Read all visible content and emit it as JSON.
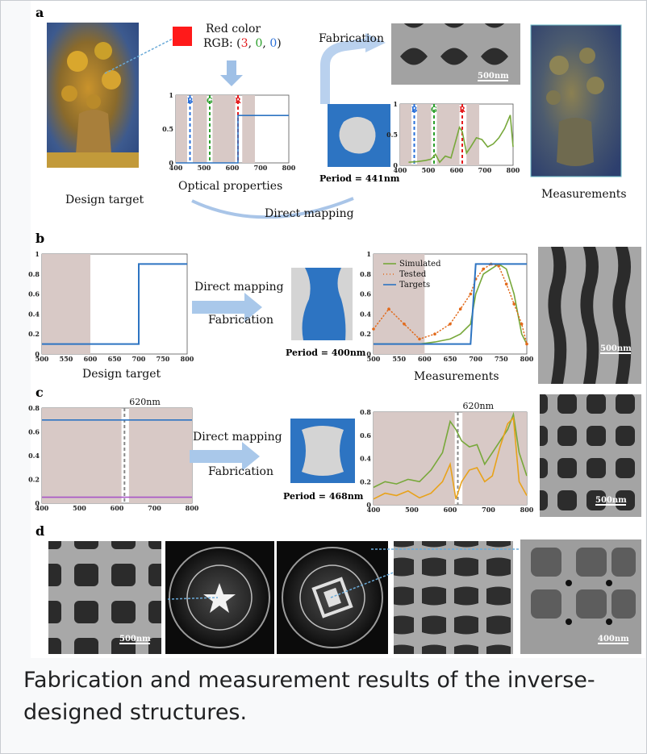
{
  "panels": {
    "a": {
      "letter": "a",
      "red_color": "Red color",
      "rgb_prefix": "RGB: (",
      "rgb_r": "3",
      "rgb_g": "0",
      "rgb_b": "0",
      "rgb_suffix": ")",
      "fabrication": "Fabrication",
      "design_target": "Design target",
      "optical_properties": "Optical properties",
      "direct_mapping": "Direct mapping",
      "measurements": "Measurements",
      "period": "Period = 441nm",
      "scale_bar": "500nm",
      "band_letters": [
        "B",
        "G",
        "R"
      ],
      "band_colors": [
        "#2a6fd8",
        "#2ca02c",
        "#e41a1c"
      ]
    },
    "b": {
      "letter": "b",
      "direct_mapping": "Direct mapping",
      "fabrication": "Fabrication",
      "design_target": "Design target",
      "measurements": "Measurements",
      "period": "Period = 400nm",
      "scale_bar": "500nm",
      "legend": [
        "Simulated",
        "Tested",
        "Targets"
      ]
    },
    "c": {
      "letter": "c",
      "direct_mapping": "Direct mapping",
      "fabrication": "Fabrication",
      "period": "Period = 468nm",
      "marker": "620nm",
      "scale_bar": "500nm"
    },
    "d": {
      "letter": "d",
      "scale_bar_1": "500nm",
      "scale_bar_2": "400nm"
    }
  },
  "caption": "Fabrication and measurement results of the inverse-designed structures.",
  "chart_data": [
    {
      "panel": "a-optical-properties",
      "type": "line",
      "xlim": [
        400,
        800
      ],
      "ylim": [
        0,
        1
      ],
      "x_ticks": [
        400,
        500,
        600,
        700,
        800
      ],
      "y_ticks": [
        0,
        0.5,
        1
      ],
      "x": [
        400,
        605,
        620,
        620,
        800
      ],
      "series": [
        {
          "values": [
            0,
            0,
            0,
            0.7,
            0.7
          ]
        }
      ],
      "band_markers": [
        450,
        520,
        620
      ]
    },
    {
      "panel": "a-measured",
      "type": "line",
      "xlim": [
        400,
        800
      ],
      "ylim": [
        0,
        1
      ],
      "x_ticks": [
        400,
        500,
        600,
        700,
        800
      ],
      "y_ticks": [
        0,
        0.5,
        1
      ],
      "x": [
        430,
        460,
        490,
        510,
        525,
        540,
        560,
        580,
        600,
        610,
        620,
        635,
        650,
        670,
        690,
        710,
        730,
        750,
        770,
        790,
        800
      ],
      "series": [
        {
          "values": [
            0.05,
            0.06,
            0.08,
            0.1,
            0.18,
            0.05,
            0.15,
            0.12,
            0.45,
            0.62,
            0.55,
            0.2,
            0.3,
            0.45,
            0.42,
            0.3,
            0.35,
            0.45,
            0.6,
            0.82,
            0.3
          ]
        }
      ],
      "band_markers": [
        450,
        520,
        620
      ]
    },
    {
      "panel": "b-design-target",
      "type": "line",
      "xlim": [
        500,
        800
      ],
      "ylim": [
        0,
        1
      ],
      "x_ticks": [
        500,
        550,
        600,
        650,
        700,
        750,
        800
      ],
      "y_ticks": [
        0,
        0.2,
        0.4,
        0.6,
        0.8,
        1
      ],
      "x": [
        500,
        700,
        700,
        800
      ],
      "series": [
        {
          "name": "Targets",
          "values": [
            0.1,
            0.1,
            0.9,
            0.9
          ]
        }
      ]
    },
    {
      "panel": "b-measurements",
      "type": "line",
      "xlim": [
        500,
        800
      ],
      "ylim": [
        0,
        1
      ],
      "x_ticks": [
        500,
        550,
        600,
        650,
        700,
        750,
        800
      ],
      "y_ticks": [
        0,
        0.2,
        0.4,
        0.6,
        0.8,
        1
      ],
      "x": [
        500,
        530,
        560,
        590,
        620,
        650,
        670,
        690,
        700,
        715,
        730,
        745,
        760,
        775,
        790,
        800
      ],
      "series": [
        {
          "name": "Simulated",
          "values": [
            0.1,
            0.1,
            0.1,
            0.1,
            0.12,
            0.15,
            0.2,
            0.3,
            0.6,
            0.8,
            0.85,
            0.9,
            0.85,
            0.6,
            0.2,
            0.1
          ]
        },
        {
          "name": "Tested",
          "values": [
            0.25,
            0.45,
            0.3,
            0.15,
            0.2,
            0.3,
            0.45,
            0.6,
            0.75,
            0.85,
            0.9,
            0.88,
            0.7,
            0.5,
            0.3,
            0.1
          ]
        },
        {
          "name": "Targets",
          "values": [
            0.1,
            0.1,
            0.1,
            0.1,
            0.1,
            0.1,
            0.1,
            0.1,
            0.9,
            0.9,
            0.9,
            0.9,
            0.9,
            0.9,
            0.9,
            0.9
          ]
        }
      ]
    },
    {
      "panel": "c-design-target",
      "type": "line",
      "xlim": [
        400,
        800
      ],
      "ylim": [
        0,
        0.8
      ],
      "x_ticks": [
        400,
        500,
        600,
        700,
        800
      ],
      "y_ticks": [
        0,
        0.2,
        0.4,
        0.6,
        0.8
      ],
      "x": [
        400,
        800
      ],
      "series": [
        {
          "values": [
            0.7,
            0.7
          ]
        },
        {
          "values": [
            0.05,
            0.05
          ]
        }
      ],
      "marker_nm": 620
    },
    {
      "panel": "c-measurements",
      "type": "line",
      "xlim": [
        400,
        800
      ],
      "ylim": [
        0,
        0.8
      ],
      "x_ticks": [
        400,
        500,
        600,
        700,
        800
      ],
      "y_ticks": [
        0,
        0.2,
        0.4,
        0.6,
        0.8
      ],
      "x": [
        400,
        430,
        460,
        490,
        520,
        550,
        580,
        600,
        615,
        630,
        650,
        670,
        690,
        710,
        730,
        750,
        765,
        780,
        800
      ],
      "series": [
        {
          "values": [
            0.15,
            0.2,
            0.18,
            0.22,
            0.2,
            0.3,
            0.45,
            0.72,
            0.65,
            0.55,
            0.5,
            0.52,
            0.35,
            0.45,
            0.55,
            0.65,
            0.78,
            0.45,
            0.25
          ]
        },
        {
          "values": [
            0.05,
            0.1,
            0.08,
            0.12,
            0.06,
            0.1,
            0.2,
            0.35,
            0.05,
            0.2,
            0.3,
            0.32,
            0.2,
            0.25,
            0.5,
            0.7,
            0.75,
            0.2,
            0.08
          ]
        }
      ],
      "marker_nm": 620
    }
  ],
  "colors": {
    "band_fill": "#d8c9c6",
    "blue": "#2d74c2",
    "green": "#77a83a",
    "orange": "#e26a1b",
    "gold": "#e8a21a",
    "purple": "#a855c7",
    "sem_dark": "#2c2c2c",
    "sem_light": "#9a9a9a"
  }
}
